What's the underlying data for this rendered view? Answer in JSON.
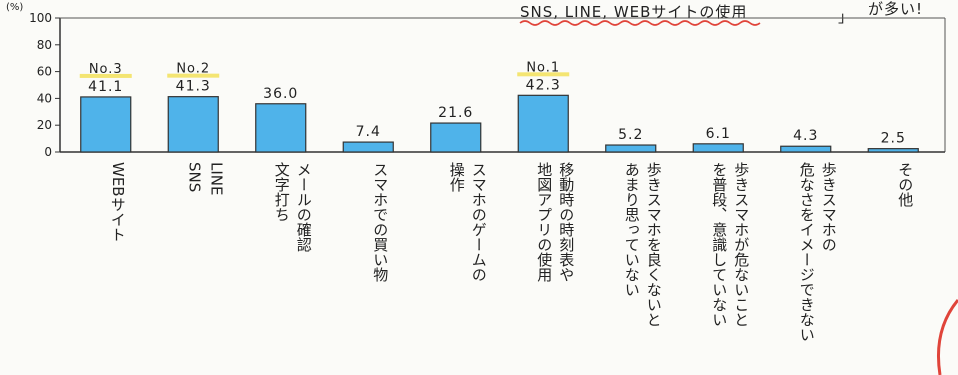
{
  "header_note": "SNS, LINE, WEBサイトの使用",
  "header_bracket": "」",
  "header_tail": "が多い!",
  "colors": {
    "bar_fill": "#4fb3ea",
    "bar_stroke": "#333333",
    "rank_underline": "#f2e05a",
    "wavy_underline": "#e0443a",
    "border_accent": "#e0443a"
  },
  "chart_data": {
    "type": "bar",
    "unit_label": "(%)",
    "ylim": [
      0,
      100
    ],
    "yticks": [
      "100",
      "80",
      "60",
      "40",
      "20",
      "0"
    ],
    "grid": false,
    "categories": [
      [
        "WEBサイト"
      ],
      [
        "LINE",
        "SNS"
      ],
      [
        "メールの確認",
        "文字打ち"
      ],
      [
        "スマホでの買い物"
      ],
      [
        "スマホのゲームの",
        "操作"
      ],
      [
        "移動時の時刻表や",
        "地図アプリの使用"
      ],
      [
        "歩きスマホを良くないと",
        "あまり思っていない"
      ],
      [
        "歩きスマホが危ないこと",
        "を普段、意識していない"
      ],
      [
        "歩きスマホの",
        "危なさをイメージできない"
      ],
      [
        "その他"
      ]
    ],
    "values": [
      41.1,
      41.3,
      36.0,
      7.4,
      21.6,
      42.3,
      5.2,
      6.1,
      4.3,
      2.5
    ],
    "value_labels": [
      "41.1",
      "41.3",
      "36.0",
      "7.4",
      "21.6",
      "42.3",
      "5.2",
      "6.1",
      "4.3",
      "2.5"
    ],
    "rank_labels": [
      "No.3",
      "No.2",
      "",
      "",
      "",
      "No.1",
      "",
      "",
      "",
      ""
    ]
  }
}
